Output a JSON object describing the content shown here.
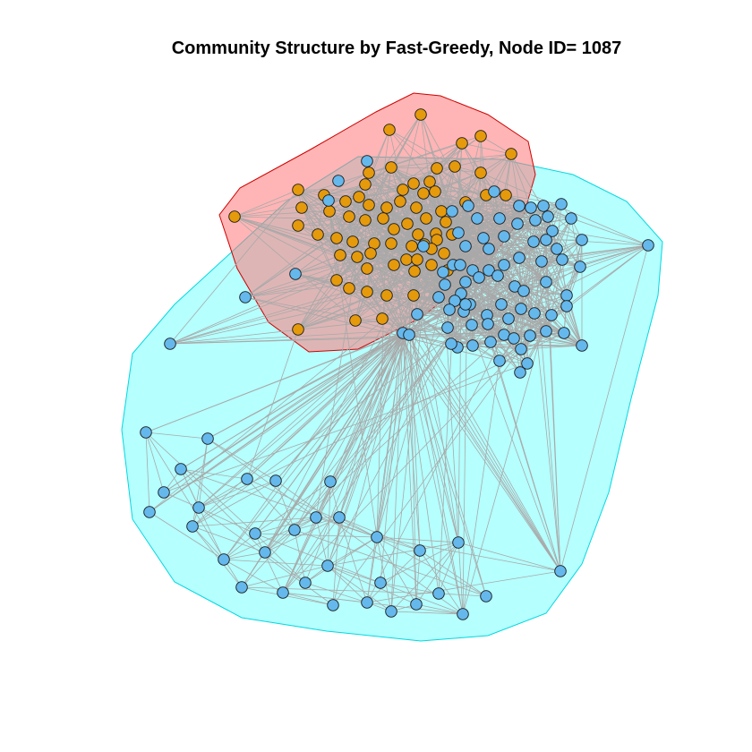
{
  "title": "Community Structure by Fast-Greedy, Node ID= 1087",
  "colors": {
    "community_orange": "#e59a0c",
    "community_blue": "#65b8ec",
    "hull_red": "#ff7878",
    "hull_cyan": "#78ffff",
    "edge": "#a9a9a9"
  },
  "chart_data": {
    "type": "network",
    "algorithm": "Fast-Greedy",
    "ego_node_id": 1087,
    "communities": [
      {
        "color": "community_orange",
        "hull": "hull_red"
      },
      {
        "color": "community_blue",
        "hull": "hull_cyan"
      }
    ]
  }
}
